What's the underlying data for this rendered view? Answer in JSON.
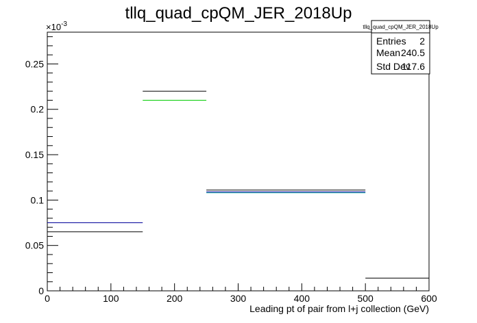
{
  "chart_data": {
    "type": "histogram",
    "title": "tllq_quad_cpQM_JER_2018Up",
    "xlabel": "Leading pt of pair from l+j collection (GeV)",
    "ylabel": "",
    "xlim": [
      0,
      600
    ],
    "ylim": [
      0,
      0.000285
    ],
    "y_multiplier_label": "×10",
    "y_multiplier_exponent": "-3",
    "x_ticks": [
      0,
      100,
      200,
      300,
      400,
      500,
      600
    ],
    "x_tick_labels": [
      "0",
      "100",
      "200",
      "300",
      "400",
      "500",
      "600"
    ],
    "y_ticks": [
      0,
      5e-05,
      0.0001,
      0.00015,
      0.0002,
      0.00025
    ],
    "y_tick_labels": [
      "0",
      "0.05",
      "0.1",
      "0.15",
      "0.2",
      "0.25"
    ],
    "bin_edges": [
      0,
      150,
      250,
      500,
      600
    ],
    "series": [
      {
        "color": "#000000",
        "values": [
          6.5e-05,
          0.00022,
          0.000111,
          1.4e-05
        ]
      },
      {
        "color": "#00cc00",
        "values": [
          null,
          0.00021,
          null,
          null
        ]
      },
      {
        "color": "#000099",
        "values": [
          7.5e-05,
          null,
          0.000109,
          null
        ]
      },
      {
        "color": "#009999",
        "values": [
          null,
          null,
          0.000108,
          null
        ]
      }
    ],
    "grid": false,
    "legend": "none"
  },
  "stats_box": {
    "name": "tllq_quad_cpQM_JER_2018Up",
    "rows": [
      {
        "label": "Entries",
        "value": "2"
      },
      {
        "label": "Mean",
        "value": "240.5"
      },
      {
        "label": "Std Dev",
        "value": "117.6"
      }
    ]
  }
}
